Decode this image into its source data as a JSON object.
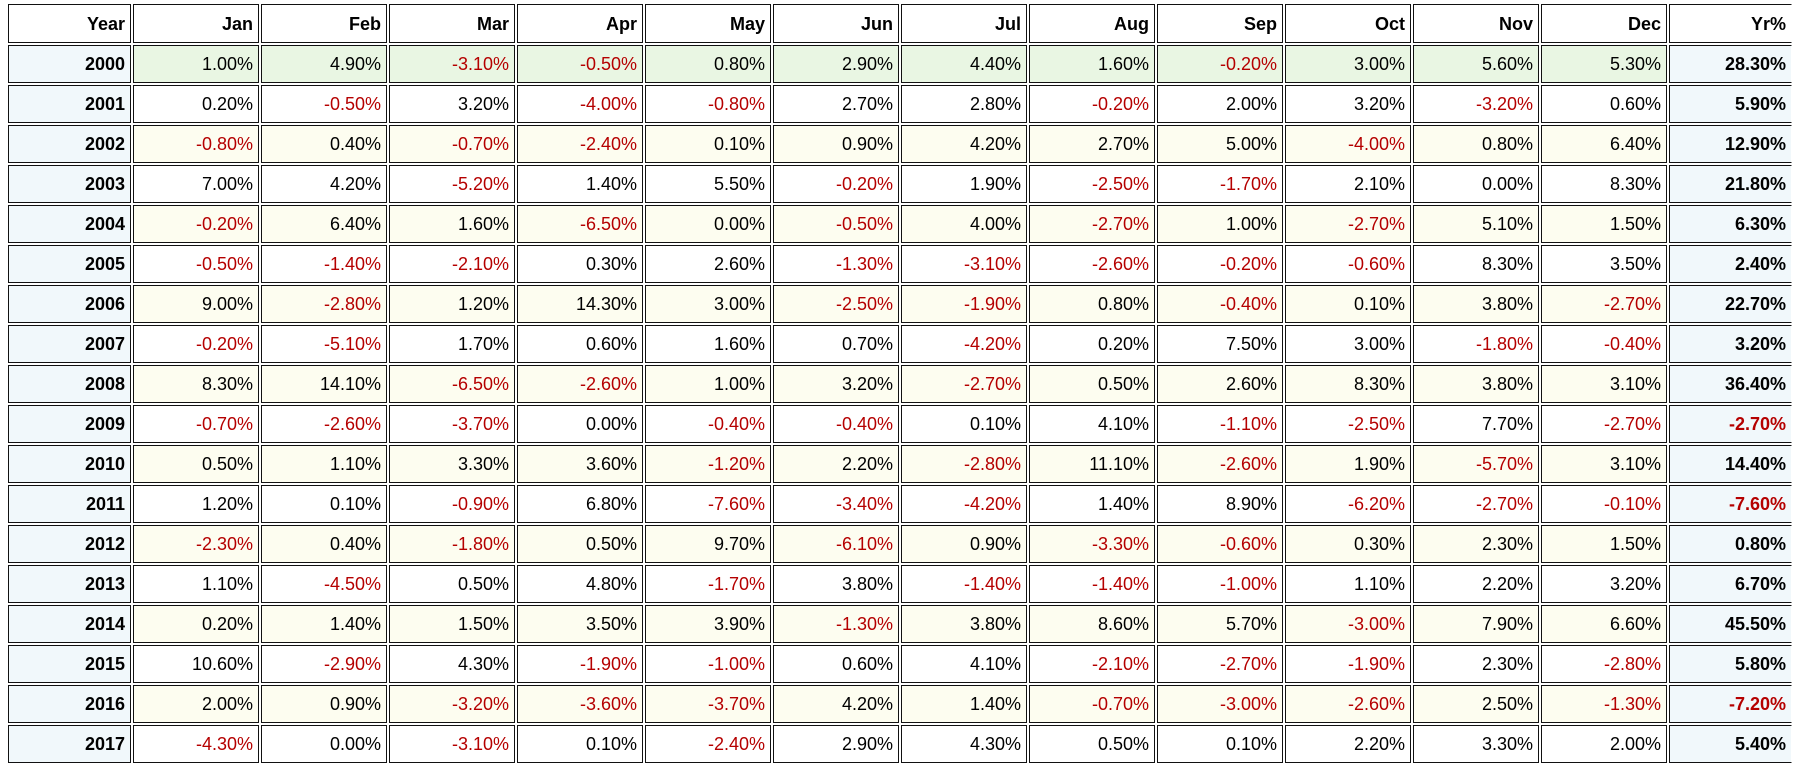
{
  "colors": {
    "negative": "#b50000",
    "positive": "#000000"
  },
  "table": {
    "columns": [
      "Year",
      "Jan",
      "Feb",
      "Mar",
      "Apr",
      "May",
      "Jun",
      "Jul",
      "Aug",
      "Sep",
      "Oct",
      "Nov",
      "Dec",
      "Yr%"
    ],
    "rows": [
      [
        "2000",
        "1.00%",
        "4.90%",
        "-3.10%",
        "-0.50%",
        "0.80%",
        "2.90%",
        "4.40%",
        "1.60%",
        "-0.20%",
        "3.00%",
        "5.60%",
        "5.30%",
        "28.30%"
      ],
      [
        "2001",
        "0.20%",
        "-0.50%",
        "3.20%",
        "-4.00%",
        "-0.80%",
        "2.70%",
        "2.80%",
        "-0.20%",
        "2.00%",
        "3.20%",
        "-3.20%",
        "0.60%",
        "5.90%"
      ],
      [
        "2002",
        "-0.80%",
        "0.40%",
        "-0.70%",
        "-2.40%",
        "0.10%",
        "0.90%",
        "4.20%",
        "2.70%",
        "5.00%",
        "-4.00%",
        "0.80%",
        "6.40%",
        "12.90%"
      ],
      [
        "2003",
        "7.00%",
        "4.20%",
        "-5.20%",
        "1.40%",
        "5.50%",
        "-0.20%",
        "1.90%",
        "-2.50%",
        "-1.70%",
        "2.10%",
        "0.00%",
        "8.30%",
        "21.80%"
      ],
      [
        "2004",
        "-0.20%",
        "6.40%",
        "1.60%",
        "-6.50%",
        "0.00%",
        "-0.50%",
        "4.00%",
        "-2.70%",
        "1.00%",
        "-2.70%",
        "5.10%",
        "1.50%",
        "6.30%"
      ],
      [
        "2005",
        "-0.50%",
        "-1.40%",
        "-2.10%",
        "0.30%",
        "2.60%",
        "-1.30%",
        "-3.10%",
        "-2.60%",
        "-0.20%",
        "-0.60%",
        "8.30%",
        "3.50%",
        "2.40%"
      ],
      [
        "2006",
        "9.00%",
        "-2.80%",
        "1.20%",
        "14.30%",
        "3.00%",
        "-2.50%",
        "-1.90%",
        "0.80%",
        "-0.40%",
        "0.10%",
        "3.80%",
        "-2.70%",
        "22.70%"
      ],
      [
        "2007",
        "-0.20%",
        "-5.10%",
        "1.70%",
        "0.60%",
        "1.60%",
        "0.70%",
        "-4.20%",
        "0.20%",
        "7.50%",
        "3.00%",
        "-1.80%",
        "-0.40%",
        "3.20%"
      ],
      [
        "2008",
        "8.30%",
        "14.10%",
        "-6.50%",
        "-2.60%",
        "1.00%",
        "3.20%",
        "-2.70%",
        "0.50%",
        "2.60%",
        "8.30%",
        "3.80%",
        "3.10%",
        "36.40%"
      ],
      [
        "2009",
        "-0.70%",
        "-2.60%",
        "-3.70%",
        "0.00%",
        "-0.40%",
        "-0.40%",
        "0.10%",
        "4.10%",
        "-1.10%",
        "-2.50%",
        "7.70%",
        "-2.70%",
        "-2.70%"
      ],
      [
        "2010",
        "0.50%",
        "1.10%",
        "3.30%",
        "3.60%",
        "-1.20%",
        "2.20%",
        "-2.80%",
        "11.10%",
        "-2.60%",
        "1.90%",
        "-5.70%",
        "3.10%",
        "14.40%"
      ],
      [
        "2011",
        "1.20%",
        "0.10%",
        "-0.90%",
        "6.80%",
        "-7.60%",
        "-3.40%",
        "-4.20%",
        "1.40%",
        "8.90%",
        "-6.20%",
        "-2.70%",
        "-0.10%",
        "-7.60%"
      ],
      [
        "2012",
        "-2.30%",
        "0.40%",
        "-1.80%",
        "0.50%",
        "9.70%",
        "-6.10%",
        "0.90%",
        "-3.30%",
        "-0.60%",
        "0.30%",
        "2.30%",
        "1.50%",
        "0.80%"
      ],
      [
        "2013",
        "1.10%",
        "-4.50%",
        "0.50%",
        "4.80%",
        "-1.70%",
        "3.80%",
        "-1.40%",
        "-1.40%",
        "-1.00%",
        "1.10%",
        "2.20%",
        "3.20%",
        "6.70%"
      ],
      [
        "2014",
        "0.20%",
        "1.40%",
        "1.50%",
        "3.50%",
        "3.90%",
        "-1.30%",
        "3.80%",
        "8.60%",
        "5.70%",
        "-3.00%",
        "7.90%",
        "6.60%",
        "45.50%"
      ],
      [
        "2015",
        "10.60%",
        "-2.90%",
        "4.30%",
        "-1.90%",
        "-1.00%",
        "0.60%",
        "4.10%",
        "-2.10%",
        "-2.70%",
        "-1.90%",
        "2.30%",
        "-2.80%",
        "5.80%"
      ],
      [
        "2016",
        "2.00%",
        "0.90%",
        "-3.20%",
        "-3.60%",
        "-3.70%",
        "4.20%",
        "1.40%",
        "-0.70%",
        "-3.00%",
        "-2.60%",
        "2.50%",
        "-1.30%",
        "-7.20%"
      ],
      [
        "2017",
        "-4.30%",
        "0.00%",
        "-3.10%",
        "0.10%",
        "-2.40%",
        "2.90%",
        "4.30%",
        "0.50%",
        "0.10%",
        "2.20%",
        "3.30%",
        "2.00%",
        "5.40%"
      ]
    ]
  }
}
